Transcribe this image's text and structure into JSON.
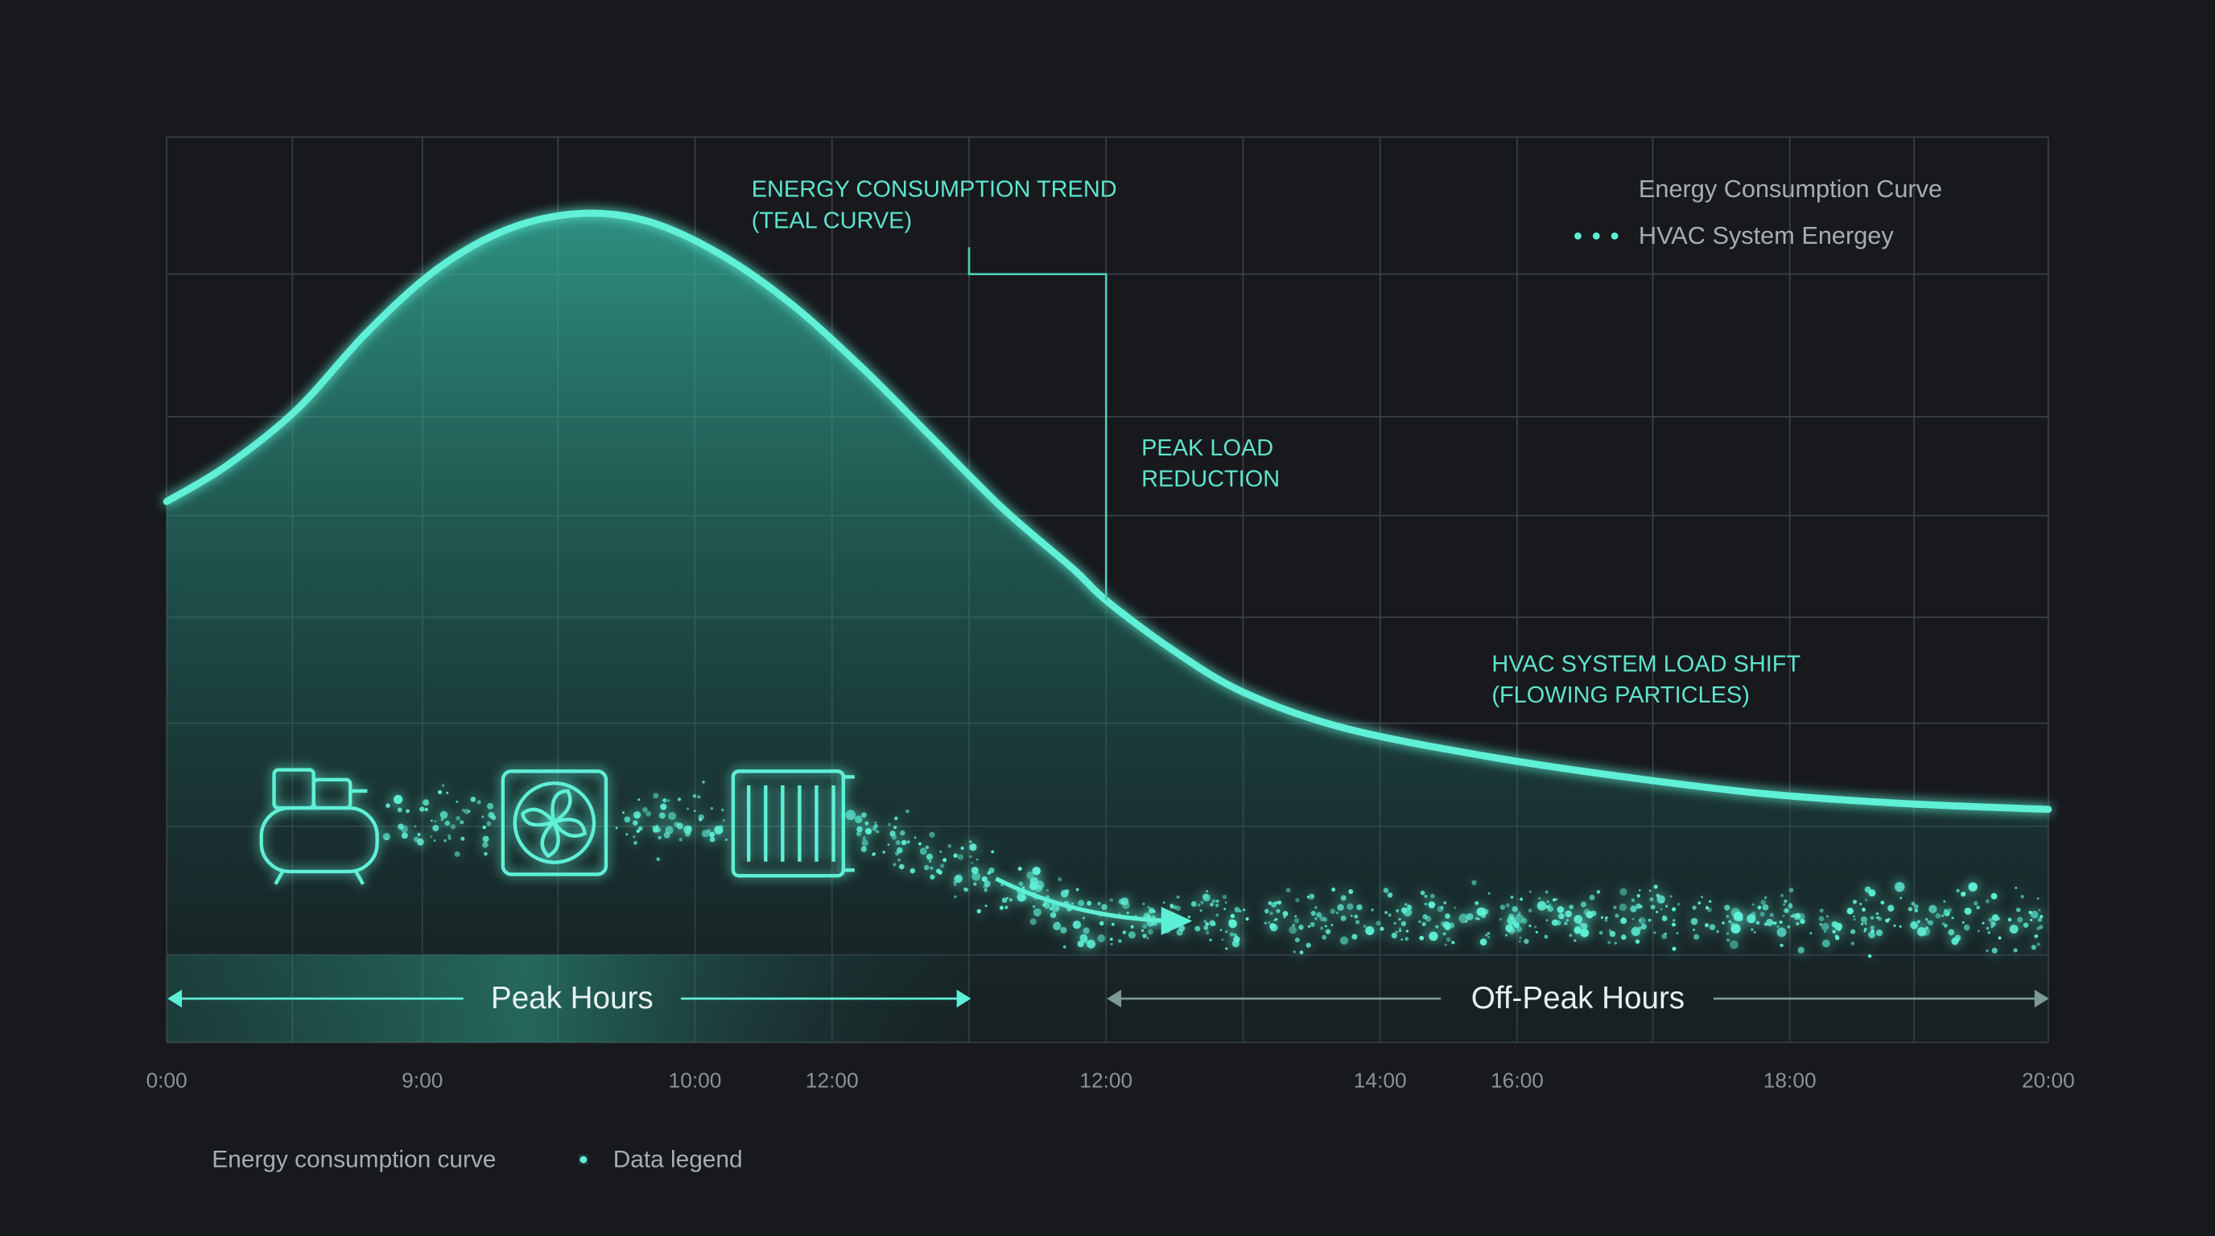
{
  "annotations": [
    {
      "lines": [
        "ENERGY CONSUMPTION TREND",
        "(TEAL CURVE)"
      ]
    },
    {
      "lines": [
        "PEAK LOAD",
        "REDUCTION"
      ]
    },
    {
      "lines": [
        "HVAC SYSTEM LOAD SHIFT",
        "(FLOWING PARTICLES)"
      ]
    }
  ],
  "legend": [
    "Energy Consumption Curve",
    "HVAC System Energey"
  ],
  "regions": [
    "Peak Hours",
    "Off-Peak Hours"
  ],
  "x_axis": {
    "labels": [
      "0:00",
      "9:00",
      "10:00",
      "12:00",
      "12:00",
      "14:00",
      "16:00",
      "18:00",
      "20:00"
    ]
  },
  "bottom_legend": [
    "Energy consumption curve",
    "Data legend"
  ]
}
